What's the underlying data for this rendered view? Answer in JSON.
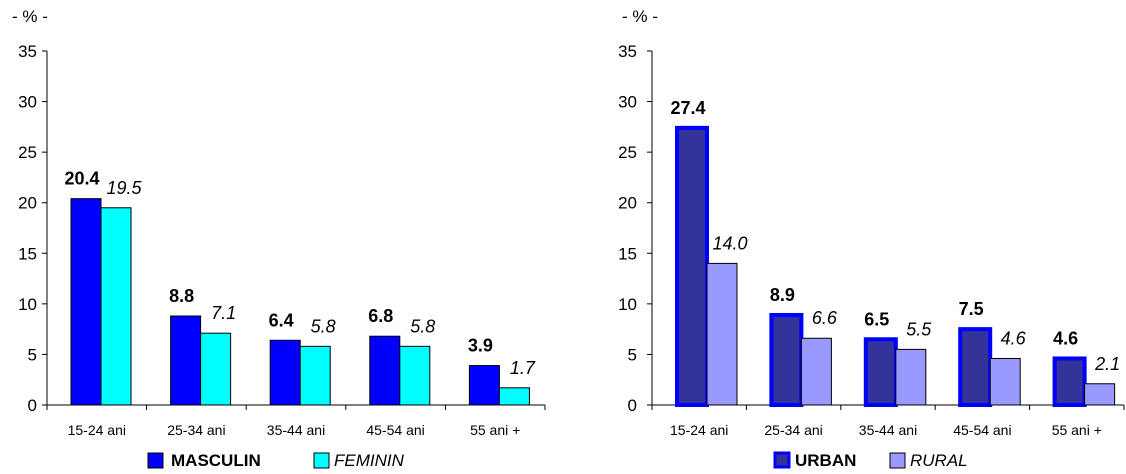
{
  "chart_data": [
    {
      "type": "bar",
      "unit_label": "- % -",
      "categories": [
        "15-24 ani",
        "25-34 ani",
        "35-44 ani",
        "45-54 ani",
        "55 ani +"
      ],
      "ylim": [
        0,
        35
      ],
      "yticks": [
        0,
        5,
        10,
        15,
        20,
        25,
        30,
        35
      ],
      "grid": false,
      "legend_position": "bottom",
      "series": [
        {
          "name": "MASCULIN",
          "values": [
            20.4,
            8.8,
            6.4,
            6.8,
            3.9
          ],
          "labels": [
            "20.4",
            "8.8",
            "6.4",
            "6.8",
            "3.9"
          ],
          "fill": "#0000FF",
          "stroke": "#000000",
          "style": "bold"
        },
        {
          "name": "FEMININ",
          "values": [
            19.5,
            7.1,
            5.8,
            5.8,
            1.7
          ],
          "labels": [
            "19.5",
            "7.1",
            "5.8",
            "5.8",
            "1.7"
          ],
          "fill": "#00FFFF",
          "stroke": "#000000",
          "style": "italic"
        }
      ]
    },
    {
      "type": "bar",
      "unit_label": "- % -",
      "categories": [
        "15-24 ani",
        "25-34 ani",
        "35-44 ani",
        "45-54 ani",
        "55 ani +"
      ],
      "ylim": [
        0,
        35
      ],
      "yticks": [
        0,
        5,
        10,
        15,
        20,
        25,
        30,
        35
      ],
      "grid": false,
      "legend_position": "bottom",
      "series": [
        {
          "name": "URBAN",
          "values": [
            27.4,
            8.9,
            6.5,
            7.5,
            4.6
          ],
          "labels": [
            "27.4",
            "8.9",
            "6.5",
            "7.5",
            "4.6"
          ],
          "fill": "#333399",
          "stroke": "#0000FF",
          "style": "bold"
        },
        {
          "name": "RURAL",
          "values": [
            14.0,
            6.6,
            5.5,
            4.6,
            2.1
          ],
          "labels": [
            "14.0",
            "6.6",
            "5.5",
            "4.6",
            "2.1"
          ],
          "fill": "#9999FF",
          "stroke": "#000000",
          "style": "italic"
        }
      ]
    }
  ]
}
